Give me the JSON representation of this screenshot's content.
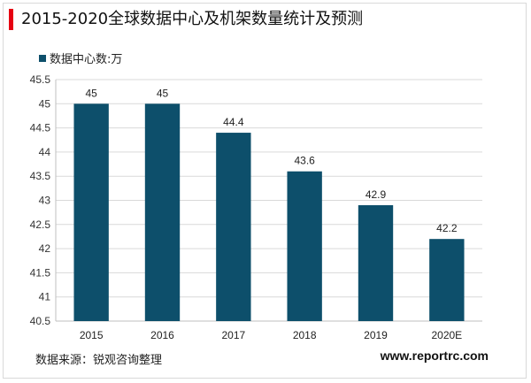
{
  "header": {
    "title": "2015-2020全球数据中心及机架数量统计及预测"
  },
  "footer": {
    "source": "数据来源：锐观咨询整理",
    "url": "www.reportrc.com"
  },
  "colors": {
    "accent": "#e60012",
    "bar": "#0d4f6b"
  },
  "chart_data": {
    "type": "bar",
    "categories": [
      "2015",
      "2016",
      "2017",
      "2018",
      "2019",
      "2020E"
    ],
    "series": [
      {
        "name": "数据中心数:万",
        "values": [
          45,
          45,
          44.4,
          43.6,
          42.9,
          42.2
        ]
      }
    ],
    "ylim": [
      40.5,
      45.5
    ],
    "yticks": [
      40.5,
      41,
      41.5,
      42,
      42.5,
      43,
      43.5,
      44,
      44.5,
      45,
      45.5
    ],
    "ytick_labels": [
      "40.5",
      "41",
      "41.5",
      "42",
      "42.5",
      "43",
      "43.5",
      "44",
      "44.5",
      "45",
      "45.5"
    ],
    "data_labels": [
      "45",
      "45",
      "44.4",
      "43.6",
      "42.9",
      "42.2"
    ],
    "legend_position": "top-left",
    "grid": true
  }
}
